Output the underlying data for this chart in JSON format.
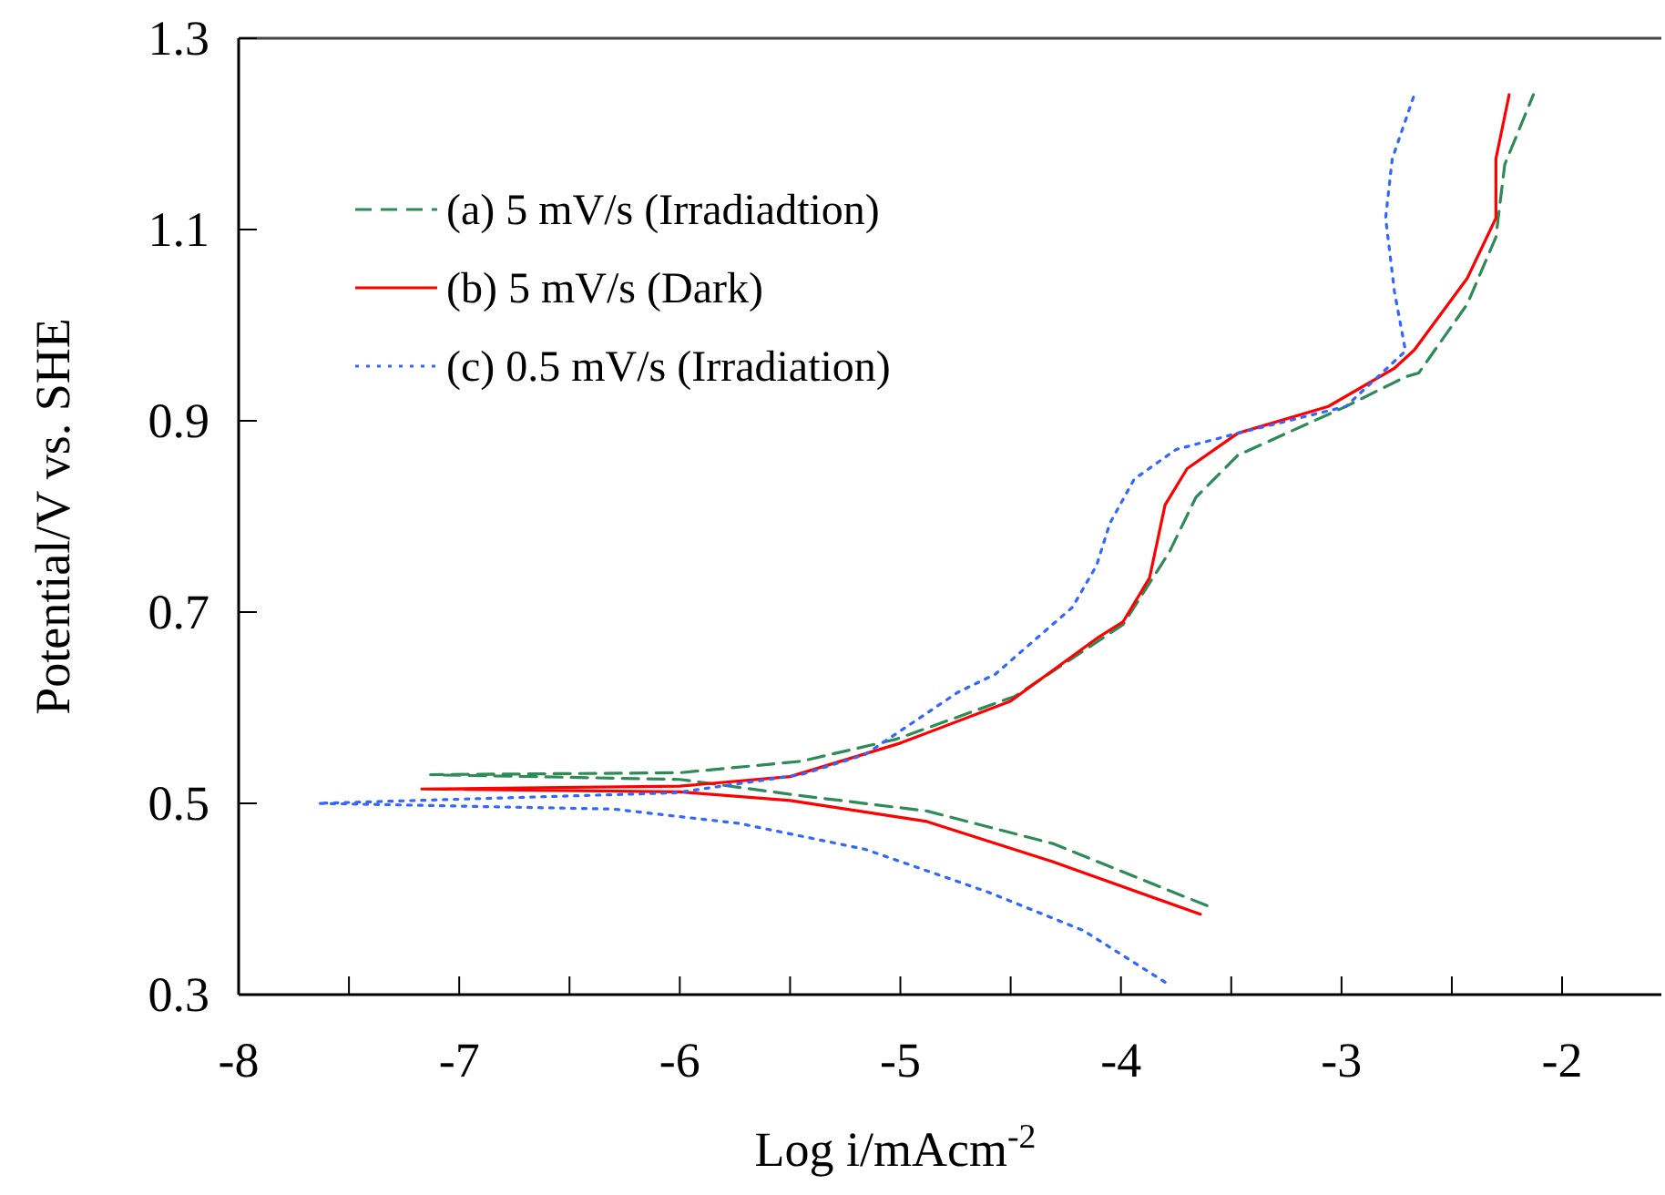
{
  "chart_data": {
    "type": "line",
    "xlabel": "Log i/mAcm$^{-2}$",
    "ylabel": "Potential/V vs. SHE",
    "xlim": [
      -8,
      -1.55
    ],
    "ylim": [
      0.3,
      1.3
    ],
    "xticks": [
      -8,
      {
        "value": -7.5,
        "label": null
      },
      -7,
      {
        "value": -6.5,
        "label": null
      },
      -6,
      {
        "value": -5.5,
        "label": null
      },
      -5,
      {
        "value": -4.5,
        "label": null
      },
      -4,
      {
        "value": -3.5,
        "label": null
      },
      -3,
      {
        "value": -2.5,
        "label": null
      },
      -2
    ],
    "yticks": [
      0.3,
      0.5,
      0.7,
      0.9,
      1.1,
      1.3
    ],
    "grid": false,
    "legend": "top left",
    "marker": "none",
    "series": [
      {
        "name": "(a) 5 mV/s (Irradiadtion)",
        "color": "#2e8b57",
        "line_style": "dashed",
        "x": [
          -3.61,
          -4.31,
          -4.88,
          -5.45,
          -6.0,
          -7.13,
          -6.0,
          -5.45,
          -5.02,
          -4.48,
          -3.99,
          -3.78,
          -3.66,
          -3.47,
          -2.98,
          -2.71,
          -2.65,
          -2.43,
          -2.3,
          -2.26,
          -2.13
        ],
        "values": [
          0.393,
          0.458,
          0.492,
          0.508,
          0.525,
          0.53,
          0.532,
          0.544,
          0.567,
          0.612,
          0.687,
          0.763,
          0.82,
          0.864,
          0.915,
          0.946,
          0.95,
          1.022,
          1.092,
          1.168,
          1.241
        ]
      },
      {
        "name": "(b) 5 mV/s (Dark)",
        "color": "#ff0000",
        "line_style": "solid",
        "x": [
          -3.64,
          -4.31,
          -4.88,
          -5.5,
          -6.0,
          -7.17,
          -6.0,
          -5.5,
          -5.0,
          -4.5,
          -4.1,
          -3.99,
          -3.87,
          -3.8,
          -3.7,
          -3.47,
          -3.06,
          -2.76,
          -2.67,
          -2.43,
          -2.3,
          -2.3,
          -2.24
        ],
        "values": [
          0.384,
          0.439,
          0.481,
          0.503,
          0.512,
          0.515,
          0.518,
          0.528,
          0.563,
          0.607,
          0.674,
          0.69,
          0.736,
          0.812,
          0.85,
          0.887,
          0.915,
          0.955,
          0.974,
          1.049,
          1.112,
          1.174,
          1.241
        ]
      },
      {
        "name": "(c) 0.5 mV/s (Irradiation)",
        "color": "#3366ff",
        "line_style": "dotted",
        "x": [
          -3.8,
          -4.17,
          -4.6,
          -5.16,
          -5.73,
          -6.3,
          -7.64,
          -6.02,
          -5.45,
          -5.16,
          -4.74,
          -4.57,
          -4.22,
          -4.11,
          -4.05,
          -3.94,
          -3.75,
          -3.47,
          -2.98,
          -2.71,
          -2.76,
          -2.8,
          -2.77,
          -2.67
        ],
        "values": [
          0.313,
          0.367,
          0.407,
          0.452,
          0.479,
          0.494,
          0.5,
          0.511,
          0.53,
          0.551,
          0.616,
          0.635,
          0.705,
          0.749,
          0.793,
          0.839,
          0.87,
          0.887,
          0.915,
          0.973,
          1.035,
          1.112,
          1.174,
          1.241
        ]
      }
    ]
  }
}
